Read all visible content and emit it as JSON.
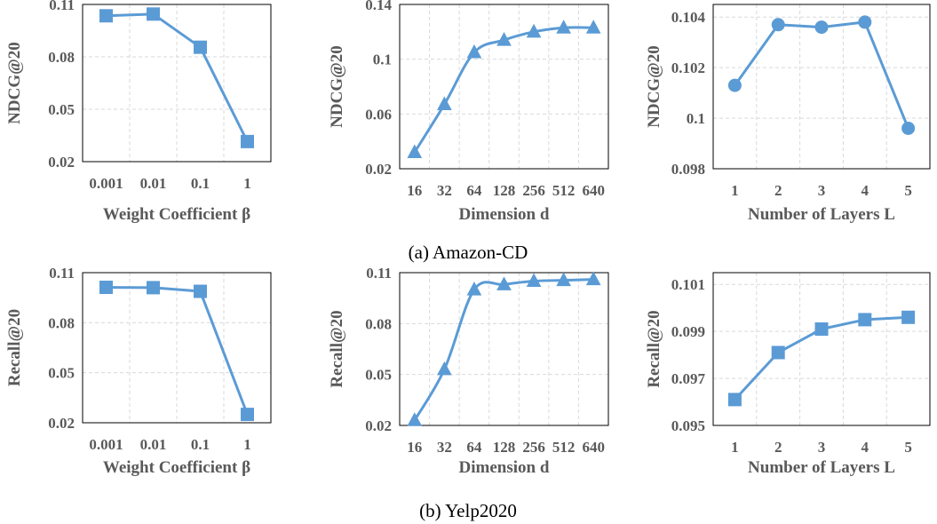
{
  "captions": [
    "(a) Amazon-CD",
    "(b) Yelp2020"
  ],
  "colors": {
    "series": "#5b9bd5",
    "grid": "#d9d9d9",
    "frame": "#000000",
    "text": "#595959"
  },
  "chart_data": [
    {
      "type": "line",
      "marker": "square",
      "smooth": false,
      "categories": [
        "0.001",
        "0.01",
        "0.1",
        "1"
      ],
      "values": [
        0.1035,
        0.1045,
        0.0855,
        0.0315
      ],
      "xlabel": "Weight Coefficient β",
      "ylabel": "NDCG@20",
      "ylim": [
        0.02,
        0.11
      ],
      "yticks": [
        0.02,
        0.05,
        0.08,
        0.11
      ],
      "ytick_labels": [
        "0.02",
        "0.05",
        "0.08",
        "0.11"
      ],
      "grid": true
    },
    {
      "type": "line",
      "marker": "triangle",
      "smooth": true,
      "categories": [
        "16",
        "32",
        "64",
        "128",
        "256",
        "512",
        "640"
      ],
      "values": [
        0.032,
        0.067,
        0.105,
        0.114,
        0.12,
        0.123,
        0.123
      ],
      "xlabel": "Dimension d",
      "ylabel": "NDCG@20",
      "ylim": [
        0.02,
        0.14
      ],
      "yticks": [
        0.02,
        0.06,
        0.1,
        0.14
      ],
      "ytick_labels": [
        "0.02",
        "0.06",
        "0.1",
        "0.14"
      ],
      "grid": true
    },
    {
      "type": "line",
      "marker": "circle",
      "smooth": false,
      "categories": [
        "1",
        "2",
        "3",
        "4",
        "5"
      ],
      "values": [
        0.1013,
        0.1037,
        0.1036,
        0.1038,
        0.0996
      ],
      "xlabel": "Number of Layers L",
      "ylabel": "NDCG@20",
      "ylim": [
        0.098,
        0.1045
      ],
      "yticks": [
        0.098,
        0.1,
        0.102,
        0.104
      ],
      "ytick_labels": [
        "0.098",
        "0.1",
        "0.102",
        "0.104"
      ],
      "grid": true
    },
    {
      "type": "line",
      "marker": "square",
      "smooth": false,
      "categories": [
        "0.001",
        "0.01",
        "0.1",
        "1"
      ],
      "values": [
        0.1012,
        0.101,
        0.0988,
        0.025
      ],
      "xlabel": "Weight Coefficient β",
      "ylabel": "Recall@20",
      "ylim": [
        0.02,
        0.11
      ],
      "yticks": [
        0.02,
        0.05,
        0.08,
        0.11
      ],
      "ytick_labels": [
        "0.02",
        "0.05",
        "0.08",
        "0.11"
      ],
      "grid": true
    },
    {
      "type": "line",
      "marker": "triangle",
      "smooth": true,
      "categories": [
        "16",
        "32",
        "64",
        "128",
        "256",
        "512",
        "640"
      ],
      "values": [
        0.023,
        0.053,
        0.1,
        0.103,
        0.105,
        0.1055,
        0.106
      ],
      "xlabel": "Dimension d",
      "ylabel": "Recall@20",
      "ylim": [
        0.02,
        0.11
      ],
      "yticks": [
        0.02,
        0.05,
        0.08,
        0.11
      ],
      "ytick_labels": [
        "0.02",
        "0.05",
        "0.08",
        "0.11"
      ],
      "grid": true
    },
    {
      "type": "line",
      "marker": "square",
      "smooth": false,
      "categories": [
        "1",
        "2",
        "3",
        "4",
        "5"
      ],
      "values": [
        0.0961,
        0.0981,
        0.0991,
        0.0995,
        0.0996
      ],
      "xlabel": "Number of Layers L",
      "ylabel": "Recall@20",
      "ylim": [
        0.095,
        0.1015
      ],
      "yticks": [
        0.095,
        0.097,
        0.099,
        0.101
      ],
      "ytick_labels": [
        "0.095",
        "0.097",
        "0.099",
        "0.101"
      ],
      "grid": true
    }
  ]
}
